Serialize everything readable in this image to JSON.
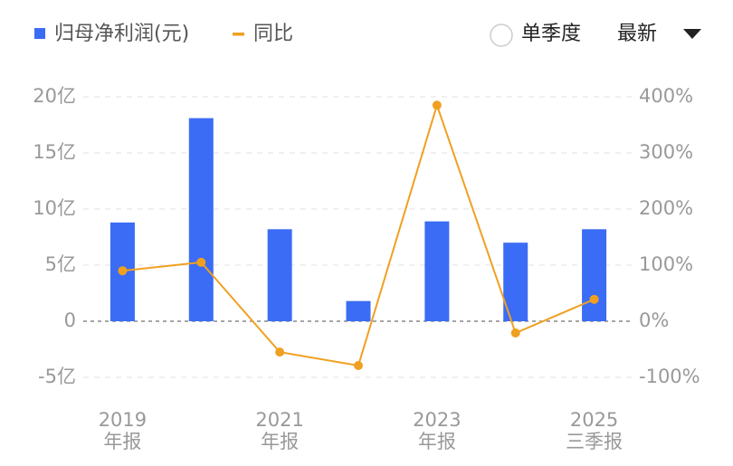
{
  "chart_data": {
    "type": "bar_line",
    "categories": [
      [
        "2019",
        "年报"
      ],
      null,
      [
        "2021",
        "年报"
      ],
      null,
      [
        "2023",
        "年报"
      ],
      null,
      [
        "2025",
        "三季报"
      ]
    ],
    "series": [
      {
        "name": "归母净利润(元)",
        "type": "bar",
        "color": "#3b6cf5",
        "values": [
          8.8,
          18.1,
          8.2,
          1.8,
          8.9,
          7.0,
          8.2
        ]
      },
      {
        "name": "同比",
        "type": "line",
        "axis": "y2",
        "color": "#f0a020",
        "values": [
          90,
          105,
          -55,
          -79,
          385,
          -21,
          39
        ]
      }
    ],
    "ylim": [
      -5,
      20
    ],
    "yticks": [
      {
        "value": -5,
        "label": "-5亿"
      },
      0,
      {
        "value": 5,
        "label": "5亿"
      },
      {
        "value": 10,
        "label": "10亿"
      },
      {
        "value": 15,
        "label": "15亿"
      },
      {
        "value": 20,
        "label": "20亿"
      }
    ],
    "y2lim": [
      -100,
      400
    ],
    "y2ticks": [
      {
        "value": -100,
        "label": "-100%"
      },
      {
        "value": 0,
        "label": "0%"
      },
      {
        "value": 100,
        "label": "100%"
      },
      {
        "value": 200,
        "label": "200%"
      },
      {
        "value": 300,
        "label": "300%"
      },
      {
        "value": 400,
        "label": "400%"
      }
    ],
    "grid": true
  },
  "controls": {
    "single_quarter": "单季度",
    "period": "最新"
  }
}
